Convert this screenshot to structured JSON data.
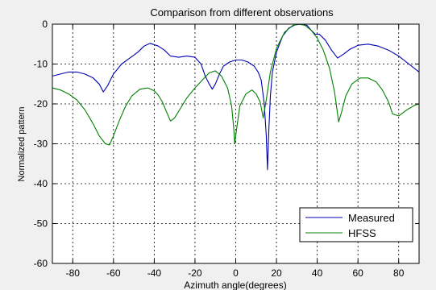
{
  "chart_data": {
    "type": "line",
    "title": "Comparison from different observations",
    "xlabel": "Azimuth angle(degrees)",
    "ylabel": "Normalized pattern",
    "xlim": [
      -90,
      90
    ],
    "ylim": [
      -60,
      0
    ],
    "xticks": [
      -80,
      -60,
      -40,
      -20,
      0,
      20,
      40,
      60,
      80
    ],
    "yticks": [
      0,
      -10,
      -20,
      -30,
      -40,
      -50,
      -60
    ],
    "grid": true,
    "legend_position": "bottom-right",
    "series": [
      {
        "name": "Measured",
        "color": "#0000b4",
        "points": [
          [
            -90,
            -13
          ],
          [
            -86,
            -12.5
          ],
          [
            -82,
            -12
          ],
          [
            -78,
            -12
          ],
          [
            -74,
            -12.5
          ],
          [
            -70,
            -13.5
          ],
          [
            -67,
            -15
          ],
          [
            -65,
            -17
          ],
          [
            -63,
            -15.5
          ],
          [
            -60,
            -12.5
          ],
          [
            -56,
            -10
          ],
          [
            -52,
            -8.5
          ],
          [
            -48,
            -7
          ],
          [
            -45,
            -5.5
          ],
          [
            -42,
            -4.8
          ],
          [
            -38,
            -5.5
          ],
          [
            -35,
            -6.5
          ],
          [
            -32,
            -8
          ],
          [
            -28,
            -8.3
          ],
          [
            -24,
            -8
          ],
          [
            -20,
            -8.3
          ],
          [
            -17,
            -10
          ],
          [
            -15,
            -13
          ],
          [
            -13,
            -15
          ],
          [
            -11.5,
            -16.3
          ],
          [
            -10,
            -15
          ],
          [
            -8,
            -12.5
          ],
          [
            -6,
            -10.5
          ],
          [
            -3,
            -9.5
          ],
          [
            0,
            -9
          ],
          [
            3,
            -9
          ],
          [
            6,
            -9.5
          ],
          [
            9,
            -10.5
          ],
          [
            11,
            -12
          ],
          [
            12.5,
            -14
          ],
          [
            14,
            -20
          ],
          [
            15,
            -28
          ],
          [
            15.6,
            -36.5
          ],
          [
            16.3,
            -26
          ],
          [
            17,
            -18
          ],
          [
            18,
            -12
          ],
          [
            20,
            -7
          ],
          [
            23,
            -3
          ],
          [
            26,
            -1
          ],
          [
            29,
            -0.2
          ],
          [
            32,
            0
          ],
          [
            35,
            -0.3
          ],
          [
            37,
            -1.5
          ],
          [
            39,
            -2.5
          ],
          [
            41,
            -2.5
          ],
          [
            44,
            -4
          ],
          [
            47,
            -6.5
          ],
          [
            50,
            -8.5
          ],
          [
            53,
            -7.5
          ],
          [
            56,
            -6.3
          ],
          [
            60,
            -5.3
          ],
          [
            65,
            -5
          ],
          [
            70,
            -5.5
          ],
          [
            75,
            -6.5
          ],
          [
            80,
            -8
          ],
          [
            85,
            -10
          ],
          [
            90,
            -12
          ]
        ]
      },
      {
        "name": "HFSS",
        "color": "#008000",
        "points": [
          [
            -90,
            -16
          ],
          [
            -86,
            -16.5
          ],
          [
            -82,
            -17.5
          ],
          [
            -78,
            -19
          ],
          [
            -74,
            -21.5
          ],
          [
            -70,
            -25
          ],
          [
            -67,
            -28
          ],
          [
            -64,
            -30
          ],
          [
            -62,
            -30.3
          ],
          [
            -60,
            -28
          ],
          [
            -57,
            -24
          ],
          [
            -54,
            -20.5
          ],
          [
            -51,
            -18
          ],
          [
            -47,
            -16.3
          ],
          [
            -43,
            -16
          ],
          [
            -40,
            -16.7
          ],
          [
            -38,
            -17.8
          ],
          [
            -36,
            -19.5
          ],
          [
            -34,
            -22
          ],
          [
            -32,
            -24.3
          ],
          [
            -30,
            -23.5
          ],
          [
            -27,
            -21
          ],
          [
            -24,
            -18.5
          ],
          [
            -20,
            -16
          ],
          [
            -16,
            -13.8
          ],
          [
            -13,
            -12.2
          ],
          [
            -10,
            -11.7
          ],
          [
            -7,
            -13
          ],
          [
            -4,
            -16
          ],
          [
            -2,
            -20.5
          ],
          [
            -1,
            -26
          ],
          [
            -0.5,
            -30
          ],
          [
            0.5,
            -26
          ],
          [
            2,
            -20.5
          ],
          [
            5,
            -17.5
          ],
          [
            8,
            -16.5
          ],
          [
            10,
            -17.5
          ],
          [
            12,
            -19.5
          ],
          [
            13.5,
            -23.5
          ],
          [
            15,
            -19
          ],
          [
            17,
            -12
          ],
          [
            20,
            -6
          ],
          [
            24,
            -2
          ],
          [
            28,
            -0.3
          ],
          [
            31,
            0
          ],
          [
            34,
            -0.3
          ],
          [
            37,
            -1.5
          ],
          [
            40,
            -3.5
          ],
          [
            43,
            -6.5
          ],
          [
            46,
            -11
          ],
          [
            48.5,
            -17
          ],
          [
            50.5,
            -24.5
          ],
          [
            52,
            -22
          ],
          [
            54,
            -18
          ],
          [
            57,
            -15
          ],
          [
            61,
            -13.5
          ],
          [
            65,
            -13.5
          ],
          [
            69,
            -14.5
          ],
          [
            72,
            -16.5
          ],
          [
            75,
            -19.5
          ],
          [
            77,
            -22.5
          ],
          [
            80,
            -23
          ],
          [
            84,
            -21.5
          ],
          [
            88,
            -20.3
          ],
          [
            90,
            -20
          ]
        ]
      }
    ]
  }
}
